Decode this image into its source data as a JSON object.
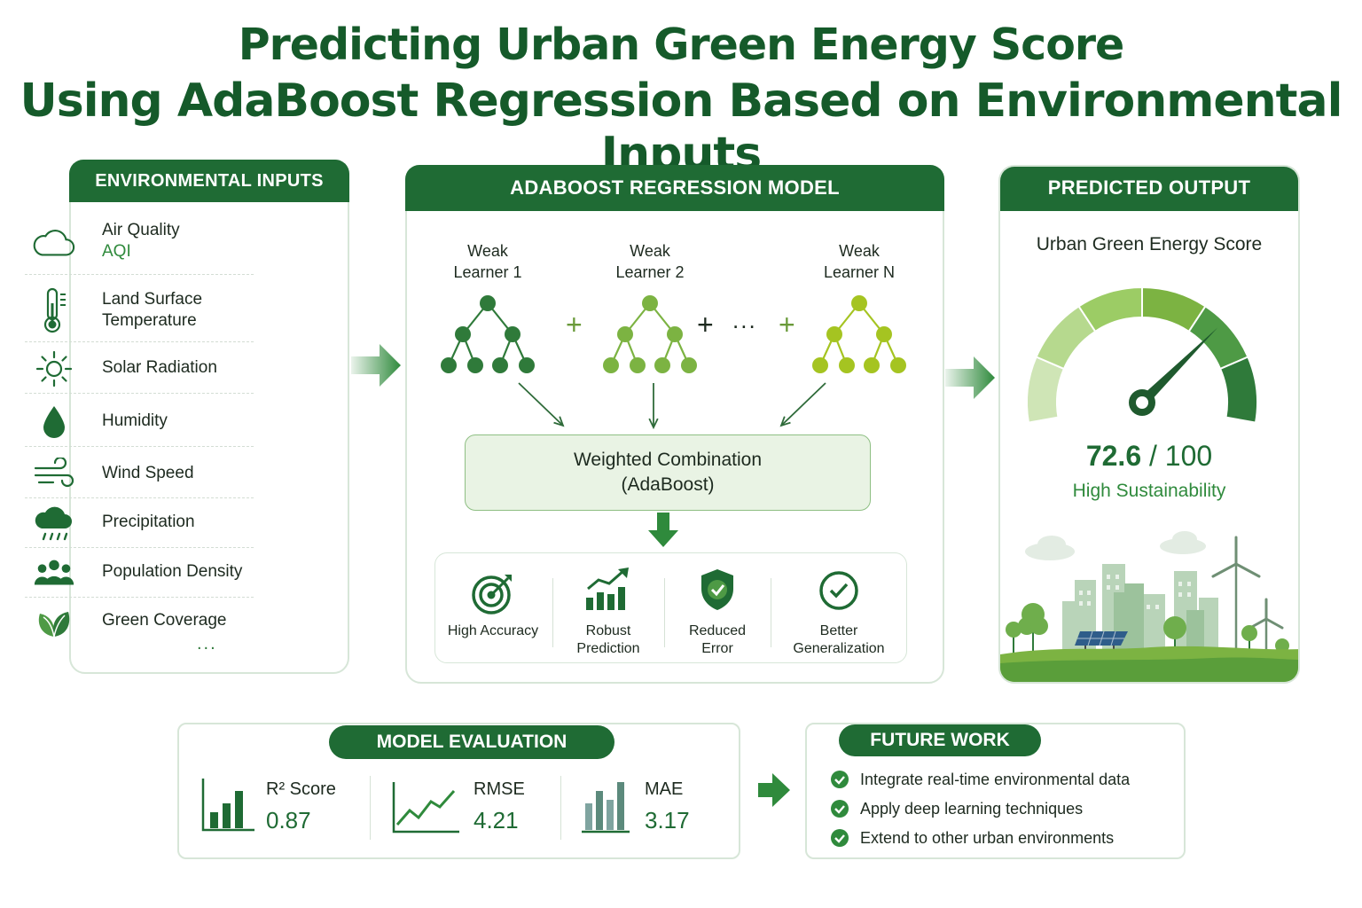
{
  "title": {
    "line1": "Predicting Urban Green Energy Score",
    "line2": "Using AdaBoost Regression Based on Environmental Inputs"
  },
  "inputs": {
    "header": "ENVIRONMENTAL INPUTS",
    "items": [
      {
        "label": "Air Quality",
        "sub": "AQI",
        "icon": "cloud-icon"
      },
      {
        "label": "Land Surface",
        "label2": "Temperature",
        "icon": "thermometer-icon"
      },
      {
        "label": "Solar Radiation",
        "icon": "sun-icon"
      },
      {
        "label": "Humidity",
        "icon": "droplet-icon"
      },
      {
        "label": "Wind Speed",
        "icon": "wind-icon"
      },
      {
        "label": "Precipitation",
        "icon": "rain-cloud-icon"
      },
      {
        "label": "Population Density",
        "icon": "people-icon"
      },
      {
        "label": "Green Coverage",
        "icon": "leaf-icon"
      }
    ],
    "more": "..."
  },
  "model": {
    "header": "ADABOOST REGRESSION MODEL",
    "learners": [
      {
        "line1": "Weak",
        "line2": "Learner 1",
        "color": "#2f7a3a"
      },
      {
        "line1": "Weak",
        "line2": "Learner 2",
        "color": "#7cb342"
      },
      {
        "line1": "Weak",
        "line2": "Learner N",
        "color": "#a5c421"
      }
    ],
    "plus": "+",
    "ellipsis": "...",
    "combination": {
      "line1": "Weighted Combination",
      "line2": "(AdaBoost)"
    },
    "benefits": [
      {
        "line1": "High Accuracy",
        "line2": "",
        "icon": "target-icon"
      },
      {
        "line1": "Robust",
        "line2": "Prediction",
        "icon": "bar-trend-icon"
      },
      {
        "line1": "Reduced",
        "line2": "Error",
        "icon": "shield-check-icon"
      },
      {
        "line1": "Better",
        "line2": "Generalization",
        "icon": "check-circle-icon"
      }
    ]
  },
  "output": {
    "header": "PREDICTED OUTPUT",
    "score_title": "Urban Green Energy Score",
    "score": "72.6",
    "score_max": "/ 100",
    "score_fraction": 0.726,
    "rating": "High Sustainability",
    "gauge_colors": [
      "#cfe5b6",
      "#b6d98e",
      "#9ccc65",
      "#7cb342",
      "#4e9a45",
      "#2f7a3a"
    ]
  },
  "evaluation": {
    "header": "MODEL EVALUATION",
    "metrics": [
      {
        "name": "R² Score",
        "value": "0.87",
        "icon": "bar-chart-icon"
      },
      {
        "name": "RMSE",
        "value": "4.21",
        "icon": "line-chart-icon"
      },
      {
        "name": "MAE",
        "value": "3.17",
        "icon": "column-chart-icon"
      }
    ]
  },
  "future": {
    "header": "FUTURE WORK",
    "items": [
      "Integrate real-time environmental data",
      "Apply deep learning techniques",
      "Extend to other urban environments"
    ]
  },
  "colors": {
    "primary": "#1f6b34",
    "accent": "#2f8a3c",
    "light": "#e9f3e4"
  }
}
